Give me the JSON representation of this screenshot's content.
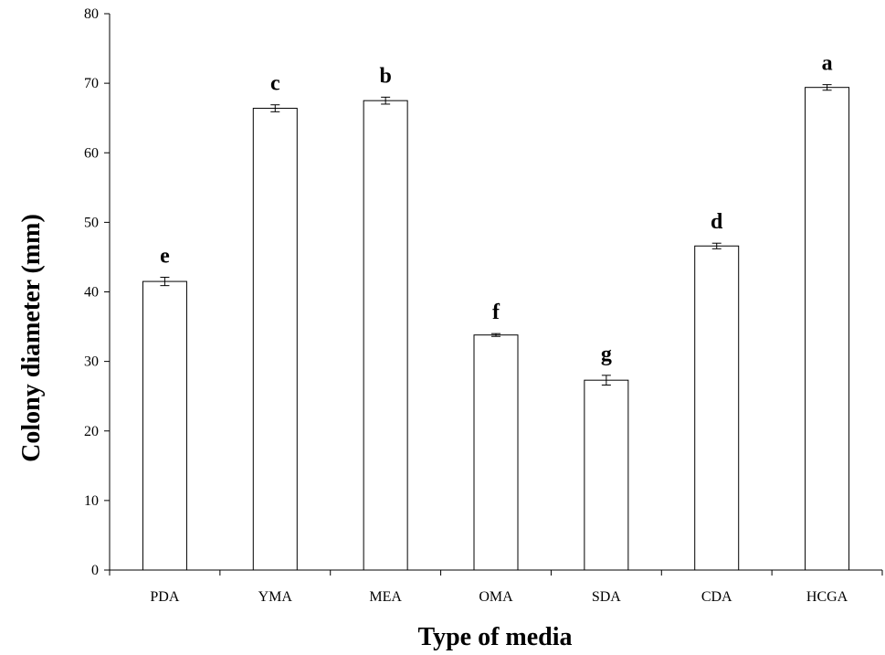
{
  "chart_data": {
    "type": "bar",
    "title": "",
    "xlabel": "Type of media",
    "ylabel": "Colony diameter (mm)",
    "ylim": [
      0,
      80
    ],
    "yticks": [
      0,
      10,
      20,
      30,
      40,
      50,
      60,
      70,
      80
    ],
    "grid": false,
    "legend": "none",
    "categories": [
      "PDA",
      "YMA",
      "MEA",
      "OMA",
      "SDA",
      "CDA",
      "HCGA"
    ],
    "values": [
      41.5,
      66.4,
      67.5,
      33.8,
      27.3,
      46.6,
      69.4
    ],
    "errors": [
      0.6,
      0.5,
      0.5,
      0.2,
      0.7,
      0.4,
      0.4
    ],
    "significance_letters": [
      "e",
      "c",
      "b",
      "f",
      "g",
      "d",
      "a"
    ],
    "colors": {
      "bar_fill": "#ffffff",
      "bar_stroke": "#000000",
      "axis": "#000000"
    }
  }
}
